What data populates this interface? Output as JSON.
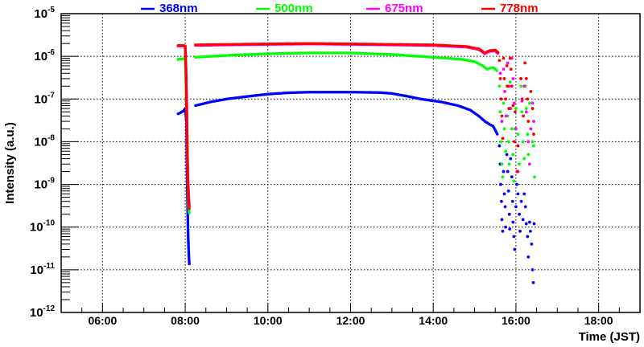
{
  "chart_data": {
    "type": "scatter",
    "title": "",
    "xlabel": "Time (JST)",
    "ylabel": "Intensity (a.u.)",
    "xlim": [
      5.0,
      19.0
    ],
    "ylim_log10": [
      -12,
      -5
    ],
    "yscale": "log",
    "grid": true,
    "legend_placement": "top",
    "x_ticks": [
      {
        "value": 6,
        "label": "06:00"
      },
      {
        "value": 8,
        "label": "08:00"
      },
      {
        "value": 10,
        "label": "10:00"
      },
      {
        "value": 12,
        "label": "12:00"
      },
      {
        "value": 14,
        "label": "14:00"
      },
      {
        "value": 16,
        "label": "16:00"
      },
      {
        "value": 18,
        "label": "18:00"
      }
    ],
    "y_ticks": [
      {
        "exp": -5,
        "base": "10",
        "sup": "-5"
      },
      {
        "exp": -6,
        "base": "10",
        "sup": "-6"
      },
      {
        "exp": -7,
        "base": "10",
        "sup": "-7"
      },
      {
        "exp": -8,
        "base": "10",
        "sup": "-8"
      },
      {
        "exp": -9,
        "base": "10",
        "sup": "-9"
      },
      {
        "exp": -10,
        "base": "10",
        "sup": "-10"
      },
      {
        "exp": -11,
        "base": "10",
        "sup": "-11"
      },
      {
        "exp": -12,
        "base": "10",
        "sup": "-12"
      }
    ],
    "series": [
      {
        "name": "368nm",
        "color": "#0000ff",
        "segments": [
          [
            [
              7.83,
              4.5e-08
            ],
            [
              7.95,
              5.2e-08
            ],
            [
              8.0,
              6e-08
            ],
            [
              8.03,
              3e-08
            ],
            [
              8.05,
              1e-09
            ],
            [
              8.07,
              6e-11
            ],
            [
              8.09,
              2e-11
            ],
            [
              8.1,
              1.3e-11
            ]
          ],
          [
            [
              8.25,
              7e-08
            ],
            [
              8.6,
              8.5e-08
            ],
            [
              9.0,
              1e-07
            ],
            [
              9.5,
              1.15e-07
            ],
            [
              10.0,
              1.3e-07
            ],
            [
              10.5,
              1.4e-07
            ],
            [
              11.0,
              1.45e-07
            ],
            [
              12.0,
              1.45e-07
            ],
            [
              12.7,
              1.42e-07
            ],
            [
              13.0,
              1.35e-07
            ],
            [
              13.4,
              1.15e-07
            ],
            [
              13.7,
              1e-07
            ],
            [
              14.2,
              8.5e-08
            ],
            [
              14.6,
              7e-08
            ],
            [
              14.9,
              5.5e-08
            ],
            [
              15.1,
              4e-08
            ],
            [
              15.25,
              3e-08
            ],
            [
              15.35,
              2.6e-08
            ],
            [
              15.45,
              2.3e-08
            ],
            [
              15.55,
              1.5e-08
            ]
          ]
        ],
        "scatter": [
          [
            15.6,
            8e-09
          ],
          [
            15.62,
            3e-09
          ],
          [
            15.63,
            1e-09
          ],
          [
            15.65,
            4e-10
          ],
          [
            15.66,
            1.5e-10
          ],
          [
            15.68,
            8e-11
          ],
          [
            15.7,
            2e-09
          ],
          [
            15.72,
            6e-10
          ],
          [
            15.74,
            3e-10
          ],
          [
            15.75,
            1e-10
          ],
          [
            15.78,
            5e-09
          ],
          [
            15.8,
            2e-09
          ],
          [
            15.82,
            7e-10
          ],
          [
            15.84,
            2e-10
          ],
          [
            15.85,
            9e-11
          ],
          [
            15.87,
            4e-09
          ],
          [
            15.9,
            1.5e-09
          ],
          [
            15.92,
            4e-10
          ],
          [
            15.93,
            1.3e-10
          ],
          [
            15.95,
            6e-11
          ],
          [
            15.97,
            3e-11
          ],
          [
            16.0,
            3e-10
          ],
          [
            16.02,
            1e-09
          ],
          [
            16.05,
            6e-10
          ],
          [
            16.08,
            2e-10
          ],
          [
            16.1,
            8e-11
          ],
          [
            16.13,
            4e-10
          ],
          [
            16.17,
            1.5e-10
          ],
          [
            16.2,
            6e-10
          ],
          [
            16.23,
            3e-10
          ],
          [
            16.25,
            1.2e-10
          ],
          [
            16.28,
            6e-11
          ],
          [
            16.3,
            2e-11
          ],
          [
            16.33,
            1.3e-10
          ],
          [
            16.35,
            8e-11
          ],
          [
            16.38,
            4e-11
          ],
          [
            16.4,
            1e-11
          ],
          [
            16.42,
            5e-12
          ],
          [
            16.44,
            1.2e-10
          ]
        ]
      },
      {
        "name": "500nm",
        "color": "#00ff00",
        "segments": [
          [
            [
              7.83,
              8.5e-07
            ],
            [
              7.97,
              8.8e-07
            ],
            [
              8.0,
              8.5e-07
            ],
            [
              8.02,
              2e-07
            ],
            [
              8.04,
              4e-08
            ],
            [
              8.05,
              6e-09
            ],
            [
              8.06,
              1.5e-09
            ],
            [
              8.08,
              3e-10
            ],
            [
              8.1,
              2e-10
            ]
          ],
          [
            [
              8.25,
              9.5e-07
            ],
            [
              9.0,
              1.05e-06
            ],
            [
              10.0,
              1.15e-06
            ],
            [
              11.0,
              1.2e-06
            ],
            [
              12.0,
              1.2e-06
            ],
            [
              13.0,
              1.1e-06
            ],
            [
              14.0,
              9.5e-07
            ],
            [
              14.7,
              8.5e-07
            ],
            [
              15.0,
              7.5e-07
            ],
            [
              15.2,
              6e-07
            ],
            [
              15.3,
              5e-07
            ],
            [
              15.45,
              5.5e-07
            ],
            [
              15.55,
              4.5e-07
            ]
          ]
        ],
        "scatter": [
          [
            15.6,
            2e-07
          ],
          [
            15.62,
            5e-08
          ],
          [
            15.64,
            1e-08
          ],
          [
            15.66,
            3e-09
          ],
          [
            15.68,
            1.5e-09
          ],
          [
            15.7,
            8e-08
          ],
          [
            15.72,
            2e-08
          ],
          [
            15.75,
            6e-09
          ],
          [
            15.78,
            2e-07
          ],
          [
            15.8,
            4e-08
          ],
          [
            15.82,
            1e-08
          ],
          [
            15.84,
            3e-09
          ],
          [
            15.86,
            2.5e-07
          ],
          [
            15.88,
            6e-08
          ],
          [
            15.9,
            2e-08
          ],
          [
            15.93,
            5e-09
          ],
          [
            15.95,
            1.2e-09
          ],
          [
            15.98,
            2e-08
          ],
          [
            16.0,
            6e-08
          ],
          [
            16.05,
            1.5e-08
          ],
          [
            16.08,
            3e-09
          ],
          [
            16.12,
            2e-07
          ],
          [
            16.14,
            5e-08
          ],
          [
            16.17,
            1e-08
          ],
          [
            16.2,
            4e-09
          ],
          [
            16.23,
            2e-07
          ],
          [
            16.25,
            6e-08
          ],
          [
            16.28,
            1.5e-08
          ],
          [
            16.3,
            5e-09
          ],
          [
            16.33,
            8e-08
          ],
          [
            16.36,
            2e-08
          ],
          [
            16.4,
            1e-08
          ],
          [
            16.43,
            8e-09
          ],
          [
            16.45,
            1.5e-09
          ]
        ]
      },
      {
        "name": "675nm",
        "color": "#ff00ff",
        "segments": [
          [
            [
              7.83,
              1.75e-06
            ],
            [
              7.97,
              1.75e-06
            ],
            [
              8.0,
              1.7e-06
            ],
            [
              8.02,
              4e-07
            ],
            [
              8.04,
              6e-08
            ],
            [
              8.05,
              7e-09
            ],
            [
              8.07,
              1e-09
            ],
            [
              8.1,
              3e-10
            ]
          ],
          [
            [
              8.25,
              1.8e-06
            ],
            [
              9.0,
              1.85e-06
            ],
            [
              10.0,
              1.9e-06
            ],
            [
              11.0,
              1.95e-06
            ],
            [
              12.0,
              1.9e-06
            ],
            [
              13.0,
              1.85e-06
            ],
            [
              14.0,
              1.8e-06
            ],
            [
              14.8,
              1.65e-06
            ],
            [
              15.1,
              1.45e-06
            ],
            [
              15.25,
              1.15e-06
            ],
            [
              15.35,
              1.3e-06
            ],
            [
              15.5,
              1.35e-06
            ],
            [
              15.58,
              1.1e-06
            ]
          ]
        ],
        "scatter": [
          [
            15.62,
            4e-07
          ],
          [
            15.64,
            1e-07
          ],
          [
            15.66,
            3e-08
          ],
          [
            15.7,
            5e-07
          ],
          [
            15.73,
            1.5e-07
          ],
          [
            15.76,
            4e-08
          ],
          [
            15.8,
            7e-07
          ],
          [
            15.83,
            2e-07
          ],
          [
            15.86,
            6e-08
          ],
          [
            15.9,
            9e-07
          ],
          [
            15.93,
            3e-07
          ],
          [
            15.96,
            8e-08
          ],
          [
            16.0,
            2e-08
          ],
          [
            16.05,
            2e-09
          ],
          [
            16.12,
            3e-07
          ],
          [
            16.15,
            9e-08
          ],
          [
            16.2,
            2e-07
          ],
          [
            16.25,
            5e-08
          ],
          [
            16.3,
            1e-08
          ],
          [
            16.33,
            3e-09
          ],
          [
            16.36,
            2e-08
          ],
          [
            16.4,
            8e-08
          ],
          [
            16.43,
            3e-08
          ]
        ]
      },
      {
        "name": "778nm",
        "color": "#ff0000",
        "segments": [
          [
            [
              7.83,
              1.8e-06
            ],
            [
              7.97,
              1.8e-06
            ],
            [
              8.0,
              1.75e-06
            ],
            [
              8.02,
              5e-07
            ],
            [
              8.03,
              1e-07
            ],
            [
              8.05,
              1e-08
            ],
            [
              8.06,
              1.5e-09
            ],
            [
              8.08,
              5e-10
            ],
            [
              8.1,
              2.5e-10
            ]
          ],
          [
            [
              8.25,
              1.85e-06
            ],
            [
              9.0,
              1.9e-06
            ],
            [
              10.0,
              1.95e-06
            ],
            [
              11.0,
              2e-06
            ],
            [
              12.0,
              1.95e-06
            ],
            [
              13.0,
              1.9e-06
            ],
            [
              14.0,
              1.85e-06
            ],
            [
              14.8,
              1.7e-06
            ],
            [
              15.1,
              1.5e-06
            ],
            [
              15.25,
              1.2e-06
            ],
            [
              15.35,
              1.35e-06
            ],
            [
              15.5,
              1.4e-06
            ],
            [
              15.58,
              1.2e-06
            ]
          ]
        ],
        "scatter": [
          [
            15.6,
            8e-07
          ],
          [
            15.62,
            3e-07
          ],
          [
            15.64,
            1e-07
          ],
          [
            15.66,
            4e-08
          ],
          [
            15.68,
            1.2e-08
          ],
          [
            15.7,
            9e-07
          ],
          [
            15.72,
            3e-07
          ],
          [
            15.75,
            1e-07
          ],
          [
            15.78,
            6e-07
          ],
          [
            15.8,
            2e-07
          ],
          [
            15.83,
            6e-08
          ],
          [
            15.86,
            9e-07
          ],
          [
            15.88,
            5e-07
          ],
          [
            15.9,
            2e-07
          ],
          [
            15.93,
            7e-08
          ],
          [
            15.96,
            1e-08
          ],
          [
            15.98,
            5e-08
          ],
          [
            16.03,
            2e-09
          ],
          [
            16.05,
            8e-09
          ],
          [
            16.12,
            3e-07
          ],
          [
            16.15,
            1e-07
          ],
          [
            16.18,
            4e-08
          ],
          [
            16.22,
            7e-07
          ],
          [
            16.25,
            3e-07
          ],
          [
            16.28,
            1e-07
          ],
          [
            16.3,
            3e-08
          ],
          [
            16.36,
            1.5e-07
          ],
          [
            16.4,
            6e-08
          ],
          [
            16.43,
            1.5e-08
          ]
        ]
      }
    ]
  }
}
